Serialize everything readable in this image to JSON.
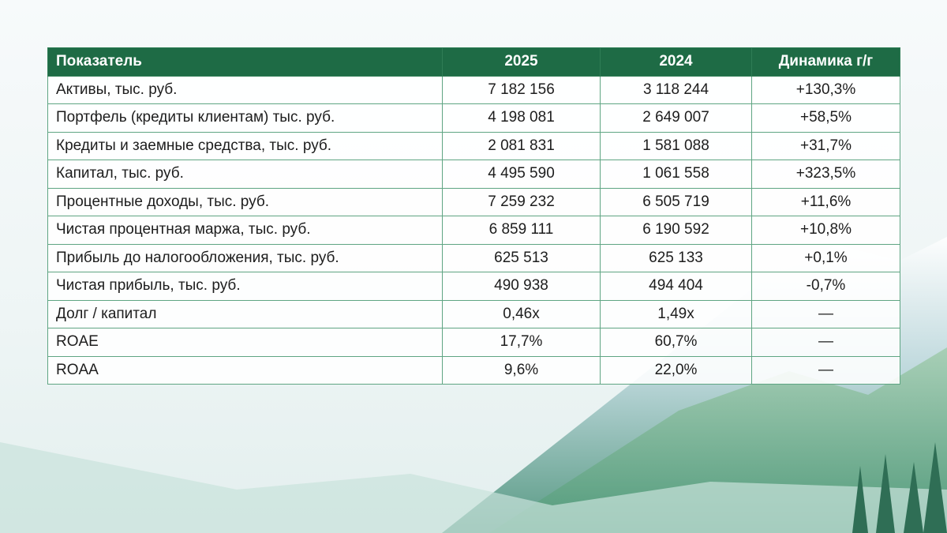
{
  "table": {
    "header": [
      "Показатель",
      "2025",
      "2024",
      "Динамика г/г"
    ],
    "rows": [
      [
        "Активы, тыс. руб.",
        "7 182 156",
        "3 118 244",
        "+130,3%"
      ],
      [
        "Портфель (кредиты клиентам) тыс. руб.",
        "4 198 081",
        "2 649 007",
        "+58,5%"
      ],
      [
        "Кредиты и заемные средства, тыс. руб.",
        "2 081 831",
        "1 581 088",
        "+31,7%"
      ],
      [
        "Капитал, тыс. руб.",
        "4 495 590",
        "1 061 558",
        "+323,5%"
      ],
      [
        "Процентные доходы, тыс. руб.",
        "7 259 232",
        "6 505 719",
        "+11,6%"
      ],
      [
        "Чистая процентная маржа, тыс. руб.",
        "6 859 111",
        "6 190 592",
        "+10,8%"
      ],
      [
        "Прибыль до налогообложения, тыс. руб.",
        "625 513",
        "625 133",
        "+0,1%"
      ],
      [
        "Чистая прибыль, тыс. руб.",
        "490 938",
        "494 404",
        "-0,7%"
      ],
      [
        "Долг / капитал",
        "0,46x",
        "1,49x",
        "—"
      ],
      [
        "ROAE",
        "17,7%",
        "60,7%",
        "—"
      ],
      [
        "ROAA",
        "9,6%",
        "22,0%",
        "—"
      ]
    ]
  }
}
